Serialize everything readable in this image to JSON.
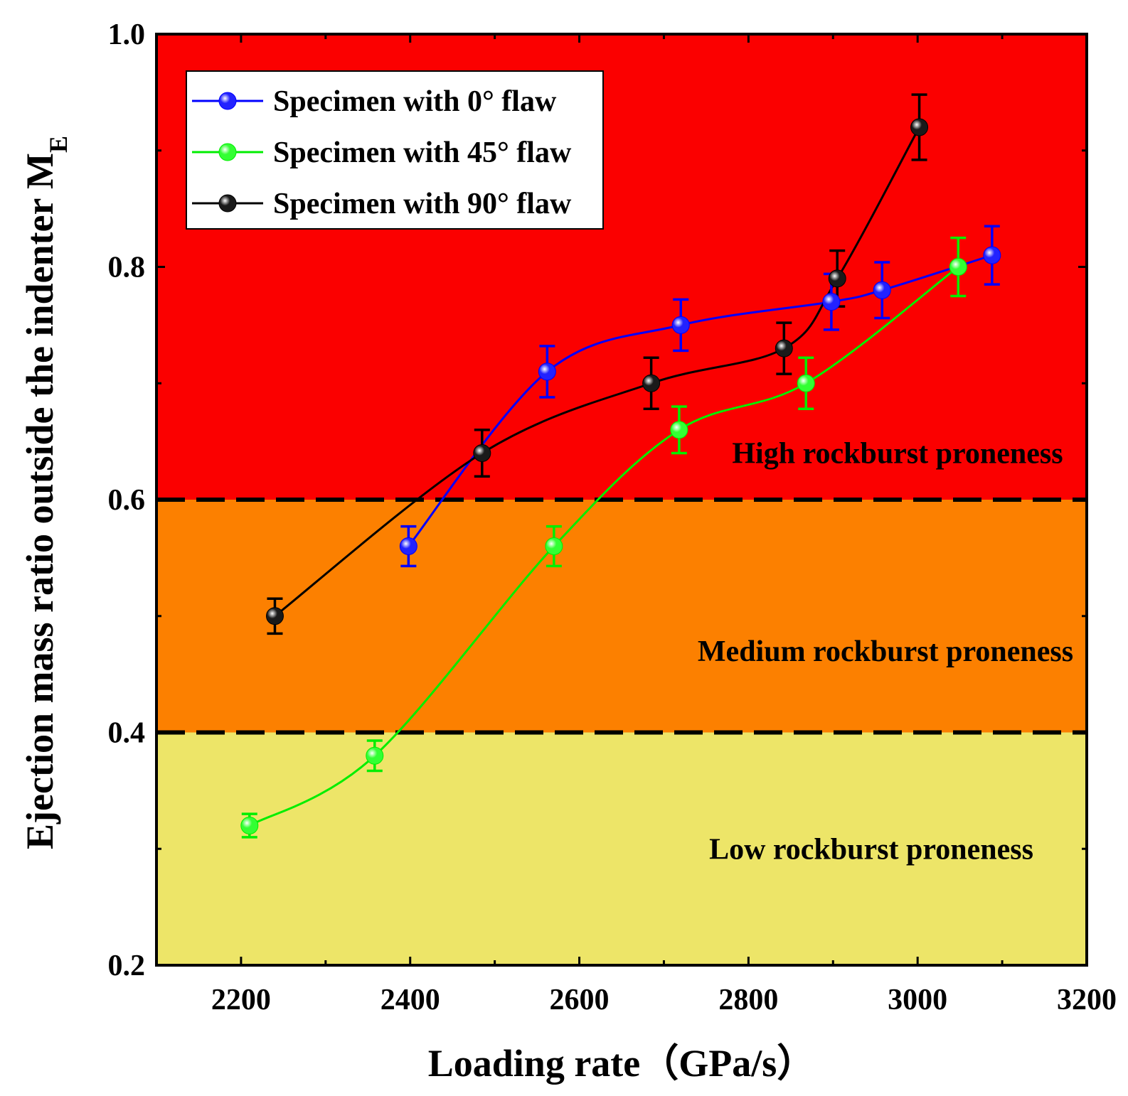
{
  "chart_data": {
    "type": "line",
    "xlabel": "Loading rate（GPa/s）",
    "ylabel": "Ejection mass ratio outside the indenter M",
    "ylabel_subscript": "E",
    "xlim": [
      2100,
      3200
    ],
    "ylim": [
      0.2,
      1.0
    ],
    "xticks": [
      2200,
      2400,
      2600,
      2800,
      3000,
      3200
    ],
    "yticks": [
      0.2,
      0.4,
      0.6,
      0.8,
      1.0
    ],
    "ytick_labels": [
      "0.2",
      "0.4",
      "0.6",
      "0.8",
      "1.0"
    ],
    "legend_position": "top-left",
    "zones": [
      {
        "label": "Low rockburst proneness",
        "from": 0.2,
        "to": 0.4,
        "color": "#ede568"
      },
      {
        "label": "Medium rockburst proneness",
        "from": 0.4,
        "to": 0.6,
        "color": "#fc8000"
      },
      {
        "label": "High rockburst proneness",
        "from": 0.6,
        "to": 1.0,
        "color": "#fb0000"
      }
    ],
    "thresholds": [
      0.4,
      0.6
    ],
    "series": [
      {
        "name": "Specimen with 0° flaw",
        "color": "#0000ff",
        "marker_color": "#2222ff",
        "x": [
          2398,
          2562,
          2720,
          2898,
          2958,
          3088
        ],
        "y": [
          0.56,
          0.71,
          0.75,
          0.77,
          0.78,
          0.81
        ],
        "err": [
          0.017,
          0.022,
          0.022,
          0.024,
          0.024,
          0.025
        ]
      },
      {
        "name": "Specimen with 45° flaw",
        "color": "#00ee00",
        "marker_color": "#33ff33",
        "x": [
          2210,
          2358,
          2570,
          2718,
          2868,
          3048
        ],
        "y": [
          0.32,
          0.38,
          0.56,
          0.66,
          0.7,
          0.8
        ],
        "err": [
          0.01,
          0.013,
          0.017,
          0.02,
          0.022,
          0.025
        ]
      },
      {
        "name": "Specimen with 90° flaw",
        "color": "#000000",
        "marker_color": "#1a1a1a",
        "x": [
          2240,
          2485,
          2685,
          2842,
          2905,
          3002
        ],
        "y": [
          0.5,
          0.64,
          0.7,
          0.73,
          0.79,
          0.92
        ],
        "err": [
          0.015,
          0.02,
          0.022,
          0.022,
          0.024,
          0.028
        ]
      }
    ]
  }
}
